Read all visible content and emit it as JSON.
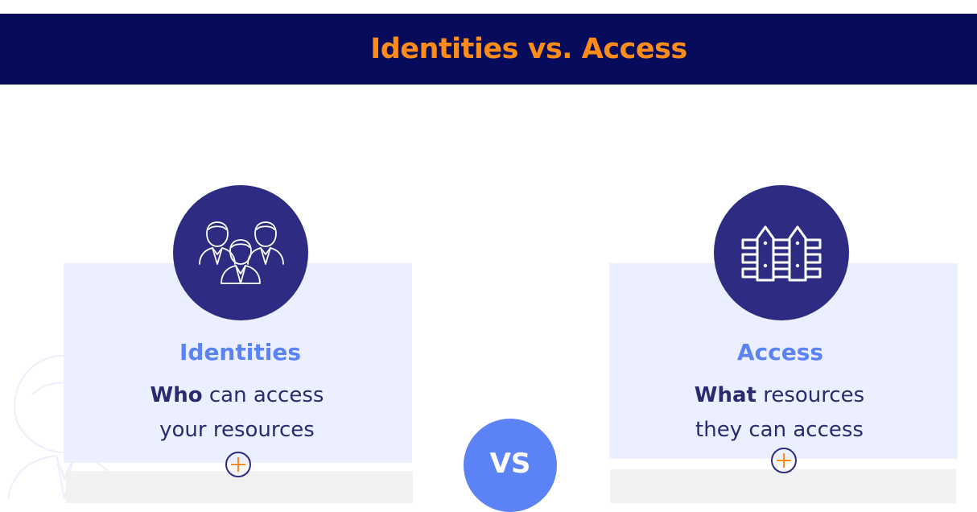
{
  "header": {
    "title": "Identities vs. Access"
  },
  "cards": {
    "left": {
      "icon": "people-group-icon",
      "title": "Identities",
      "desc_bold": "Who",
      "desc_rest": " can access",
      "desc_line2": "your resources",
      "expand_icon": "plus-icon"
    },
    "right": {
      "icon": "fence-icon",
      "title": "Access",
      "desc_bold": "What",
      "desc_rest": " resources",
      "desc_line2": "they can access",
      "expand_icon": "plus-icon"
    }
  },
  "vs": {
    "label": "VS"
  },
  "colors": {
    "header_bg": "#060b5c",
    "accent_orange": "#ff8c1a",
    "card_bg": "#ebefff",
    "circle_dark": "#2e2c82",
    "title_blue": "#5b83f5",
    "text_dark": "#2b2a6e"
  }
}
